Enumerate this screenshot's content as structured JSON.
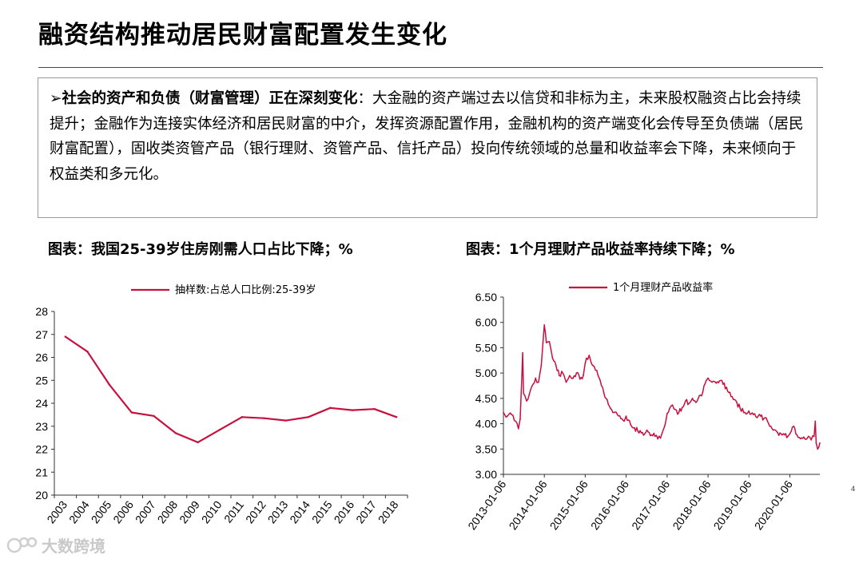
{
  "slide": {
    "title": "融资结构推动居民财富配置发生变化",
    "page_number": "4"
  },
  "summary": {
    "bullet": "➢",
    "lead": "社会的资产和负债（财富管理）正在深刻变化",
    "body": "：大金融的资产端过去以信贷和非标为主，未来股权融资占比会持续提升；金融作为连接实体经济和居民财富的中介，发挥资源配置作用，金融机构的资产端变化会传导至负债端（居民财富配置），固收类资管产品（银行理财、资管产品、信托产品）投向传统领域的总量和收益率会下降，未来倾向于权益类和多元化。"
  },
  "watermark": {
    "text": "大数跨境"
  },
  "chart_data": [
    {
      "type": "line",
      "title": "图表：我国25-39岁住房刚需人口占比下降；%",
      "legend": [
        "抽样数:占总人口比例:25-39岁"
      ],
      "legend_position": "top",
      "series_color": "#c8103e",
      "categories": [
        "2003",
        "2004",
        "2005",
        "2006",
        "2007",
        "2008",
        "2009",
        "2010",
        "2011",
        "2012",
        "2013",
        "2014",
        "2015",
        "2016",
        "2017",
        "2018"
      ],
      "series": [
        {
          "name": "抽样数:占总人口比例:25-39岁",
          "values": [
            26.9,
            26.25,
            24.8,
            23.6,
            23.45,
            22.7,
            22.3,
            22.85,
            23.4,
            23.35,
            23.25,
            23.4,
            23.8,
            23.7,
            23.75,
            23.4
          ]
        }
      ],
      "ylim": [
        20,
        28
      ],
      "yticks": [
        "20",
        "21",
        "22",
        "23",
        "24",
        "25",
        "26",
        "27",
        "28"
      ],
      "grid": false
    },
    {
      "type": "line",
      "title": "图表：1个月理财产品收益率持续下降；%",
      "legend": [
        "1个月理财产品收益率"
      ],
      "legend_position": "top",
      "series_color": "#c8103e",
      "x_ticks": [
        "2013-01-06",
        "2014-01-06",
        "2015-01-06",
        "2016-01-06",
        "2017-01-06",
        "2018-01-06",
        "2019-01-06",
        "2020-01-06"
      ],
      "xlim": [
        "2013-01-06",
        "2020-09-30"
      ],
      "ylim": [
        3.0,
        6.5
      ],
      "yticks": [
        "3.00",
        "3.50",
        "4.00",
        "4.50",
        "5.00",
        "5.50",
        "6.00",
        "6.50"
      ],
      "grid": false,
      "series": [
        {
          "name": "1个月理财产品收益率",
          "points": [
            [
              "2013-01-06",
              4.22
            ],
            [
              "2013-02-10",
              4.15
            ],
            [
              "2013-03-20",
              4.18
            ],
            [
              "2013-04-25",
              4.05
            ],
            [
              "2013-05-20",
              3.9
            ],
            [
              "2013-06-05",
              4.1
            ],
            [
              "2013-06-20",
              4.95
            ],
            [
              "2013-06-27",
              5.4
            ],
            [
              "2013-07-05",
              4.6
            ],
            [
              "2013-08-01",
              4.45
            ],
            [
              "2013-08-25",
              4.58
            ],
            [
              "2013-09-20",
              4.75
            ],
            [
              "2013-10-20",
              4.9
            ],
            [
              "2013-11-15",
              4.82
            ],
            [
              "2013-12-10",
              5.15
            ],
            [
              "2013-12-25",
              5.6
            ],
            [
              "2014-01-06",
              5.95
            ],
            [
              "2014-01-25",
              5.6
            ],
            [
              "2014-02-20",
              5.62
            ],
            [
              "2014-03-20",
              5.3
            ],
            [
              "2014-04-20",
              5.15
            ],
            [
              "2014-05-20",
              4.95
            ],
            [
              "2014-06-20",
              5.0
            ],
            [
              "2014-07-20",
              4.82
            ],
            [
              "2014-08-20",
              4.95
            ],
            [
              "2014-09-20",
              4.9
            ],
            [
              "2014-10-20",
              5.0
            ],
            [
              "2014-11-20",
              4.88
            ],
            [
              "2014-12-20",
              4.95
            ],
            [
              "2015-01-06",
              5.2
            ],
            [
              "2015-02-10",
              5.35
            ],
            [
              "2015-03-15",
              5.15
            ],
            [
              "2015-04-20",
              5.05
            ],
            [
              "2015-05-20",
              4.85
            ],
            [
              "2015-06-20",
              4.62
            ],
            [
              "2015-07-20",
              4.48
            ],
            [
              "2015-08-20",
              4.3
            ],
            [
              "2015-09-20",
              4.22
            ],
            [
              "2015-10-20",
              4.18
            ],
            [
              "2015-11-20",
              4.1
            ],
            [
              "2015-12-20",
              4.05
            ],
            [
              "2016-01-06",
              4.15
            ],
            [
              "2016-02-15",
              3.98
            ],
            [
              "2016-03-20",
              3.92
            ],
            [
              "2016-04-20",
              3.85
            ],
            [
              "2016-05-20",
              3.82
            ],
            [
              "2016-06-20",
              3.8
            ],
            [
              "2016-07-20",
              3.84
            ],
            [
              "2016-08-20",
              3.78
            ],
            [
              "2016-09-20",
              3.75
            ],
            [
              "2016-10-15",
              3.7
            ],
            [
              "2016-11-20",
              3.8
            ],
            [
              "2016-12-15",
              3.95
            ],
            [
              "2017-01-06",
              4.2
            ],
            [
              "2017-02-10",
              4.35
            ],
            [
              "2017-03-20",
              4.28
            ],
            [
              "2017-04-20",
              4.22
            ],
            [
              "2017-05-20",
              4.32
            ],
            [
              "2017-06-20",
              4.45
            ],
            [
              "2017-07-20",
              4.4
            ],
            [
              "2017-08-20",
              4.5
            ],
            [
              "2017-09-20",
              4.42
            ],
            [
              "2017-10-20",
              4.55
            ],
            [
              "2017-11-20",
              4.62
            ],
            [
              "2017-12-20",
              4.85
            ],
            [
              "2018-01-06",
              4.9
            ],
            [
              "2018-02-10",
              4.82
            ],
            [
              "2018-03-20",
              4.8
            ],
            [
              "2018-04-20",
              4.85
            ],
            [
              "2018-05-20",
              4.78
            ],
            [
              "2018-06-20",
              4.72
            ],
            [
              "2018-07-20",
              4.62
            ],
            [
              "2018-08-20",
              4.48
            ],
            [
              "2018-09-20",
              4.42
            ],
            [
              "2018-10-20",
              4.3
            ],
            [
              "2018-11-20",
              4.22
            ],
            [
              "2018-12-20",
              4.2
            ],
            [
              "2019-01-06",
              4.25
            ],
            [
              "2019-02-15",
              4.18
            ],
            [
              "2019-03-20",
              4.12
            ],
            [
              "2019-04-20",
              4.15
            ],
            [
              "2019-05-20",
              4.1
            ],
            [
              "2019-06-20",
              4.05
            ],
            [
              "2019-07-20",
              3.95
            ],
            [
              "2019-08-20",
              3.88
            ],
            [
              "2019-09-20",
              3.82
            ],
            [
              "2019-10-20",
              3.8
            ],
            [
              "2019-11-20",
              3.78
            ],
            [
              "2019-12-20",
              3.75
            ],
            [
              "2020-01-06",
              3.8
            ],
            [
              "2020-02-10",
              3.95
            ],
            [
              "2020-03-10",
              3.78
            ],
            [
              "2020-04-20",
              3.72
            ],
            [
              "2020-05-20",
              3.7
            ],
            [
              "2020-06-20",
              3.75
            ],
            [
              "2020-07-15",
              3.68
            ],
            [
              "2020-08-10",
              3.75
            ],
            [
              "2020-08-20",
              4.05
            ],
            [
              "2020-08-28",
              3.62
            ],
            [
              "2020-09-10",
              3.5
            ],
            [
              "2020-09-30",
              3.62
            ]
          ]
        }
      ]
    }
  ]
}
